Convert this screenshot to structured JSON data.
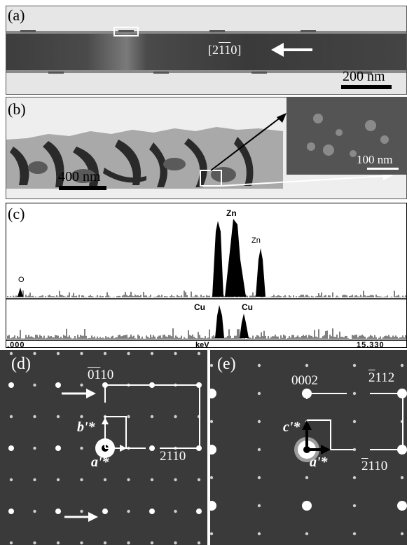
{
  "panel_a": {
    "label": "(a)",
    "dir_prefix": "[",
    "dir_bar": "21",
    "dir_rest": "10]",
    "dir_lead": "2",
    "dir_tail": "10]",
    "scale": "200 nm"
  },
  "panel_b": {
    "label": "(b)",
    "scale_main": "400 nm",
    "scale_inset": "100 nm"
  },
  "panel_c": {
    "label": "(c)",
    "peak_o": "O",
    "peak_zn1": "Zn",
    "peak_zn2": "Zn",
    "peak_cu1": "Cu",
    "peak_cu2": "Cu",
    "axis_min": "0.000",
    "axis_unit": "keV",
    "axis_max": "15.330"
  },
  "panel_d": {
    "label": "(d)",
    "top_index_bar": "01",
    "top_index_rest": "10",
    "right_index_bar": "2",
    "right_index_rest": "110",
    "b_vec": "b'*",
    "a_vec": "a'*"
  },
  "panel_e": {
    "label": "(e)",
    "top_index": "0002",
    "tr_index_bar": "2",
    "tr_index_rest": "112",
    "br_index_bar": "2",
    "br_index_rest": "110",
    "c_vec": "c'*",
    "a_vec": "a'*"
  },
  "colors": {
    "background": "#ffffff",
    "diffraction_bg": "#3a3a3a",
    "tem_light": "#ececec",
    "tem_dark": "#3c3c3c"
  }
}
